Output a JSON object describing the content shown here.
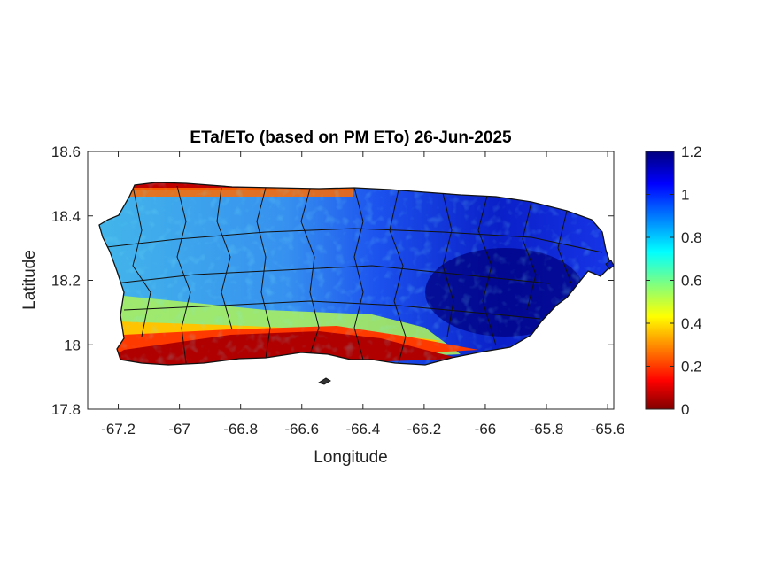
{
  "chart_data": {
    "type": "heatmap",
    "title": "ETa/ETo (based on PM ETo) 26-Jun-2025",
    "xlabel": "Longitude",
    "ylabel": "Latitude",
    "xlim": [
      -67.3,
      -65.58
    ],
    "ylim": [
      17.8,
      18.6
    ],
    "xticks": [
      -67.2,
      -67,
      -66.8,
      -66.6,
      -66.4,
      -66.2,
      -66,
      -65.8,
      -65.6
    ],
    "xtick_labels": [
      "-67.2",
      "-67",
      "-66.8",
      "-66.6",
      "-66.4",
      "-66.2",
      "-66",
      "-65.8",
      "-65.6"
    ],
    "yticks": [
      17.8,
      18,
      18.2,
      18.4,
      18.6
    ],
    "ytick_labels": [
      "17.8",
      "18",
      "18.2",
      "18.4",
      "18.6"
    ],
    "colorbar": {
      "colormap": "jet",
      "range": [
        0,
        1.2
      ],
      "ticks": [
        0,
        0.2,
        0.4,
        0.6,
        0.8,
        1,
        1.2
      ],
      "tick_labels": [
        "0",
        "0.2",
        "0.4",
        "0.6",
        "0.8",
        "1",
        "1.2"
      ]
    },
    "regions": [
      {
        "area": "north coast strip (~18.47-18.50)",
        "approx_value": 0.1
      },
      {
        "area": "northwest and north-central interior",
        "approx_value": 0.75
      },
      {
        "area": "central interior (~-66.4 to -66.1)",
        "approx_value": 0.9
      },
      {
        "area": "east interior (~-66.1 to -65.7)",
        "approx_value": 1.1
      },
      {
        "area": "southwest coastal plain (~18.00-18.05)",
        "approx_value": 0.4
      },
      {
        "area": "south coast (~17.93-18.00)",
        "approx_value": 0.05
      }
    ],
    "grid": false
  }
}
